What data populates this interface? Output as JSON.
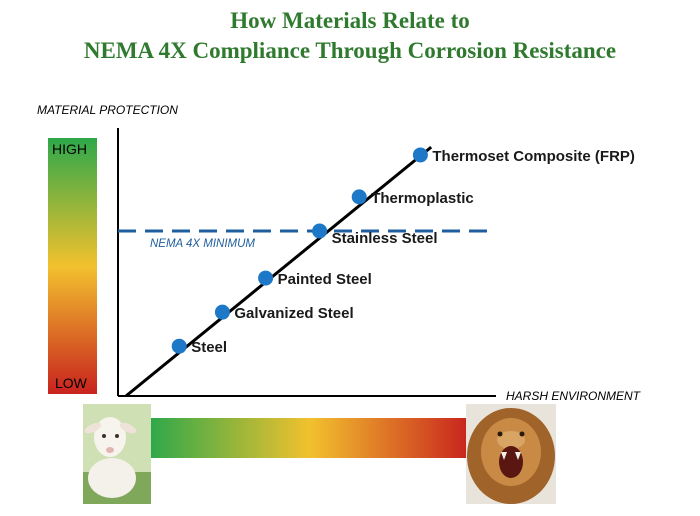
{
  "title_lines": [
    "How Materials Relate to",
    "NEMA 4X Compliance Through Corrosion Resistance"
  ],
  "colors": {
    "title": "#2f7a2f",
    "point": "#1e78c8",
    "reference_line": "#1f5f9f",
    "gradient_high": "#2ea84a",
    "gradient_mid": "#f2c12e",
    "gradient_low": "#c8231e"
  },
  "icons": {
    "mild_environment": "lamb-icon",
    "harsh_environment": "roaring-lion-icon"
  },
  "chart_data": {
    "type": "scatter",
    "ylabel": "MATERIAL PROTECTION",
    "xlabel": "HARSH ENVIRONMENT",
    "y_scale_labels": {
      "high": "HIGH",
      "low": "LOW"
    },
    "xlim": [
      0,
      10
    ],
    "ylim": [
      0,
      10
    ],
    "trend_line": {
      "from": [
        0,
        0
      ],
      "to": [
        8.7,
        9.5
      ]
    },
    "reference_line": {
      "label": "NEMA 4X MINIMUM",
      "y": 6.3
    },
    "points": [
      {
        "label": "Steel",
        "x": 1.7,
        "y": 1.9
      },
      {
        "label": "Galvanized Steel",
        "x": 2.9,
        "y": 3.2
      },
      {
        "label": "Painted Steel",
        "x": 4.1,
        "y": 4.5
      },
      {
        "label": "Stainless Steel",
        "x": 5.6,
        "y": 6.3
      },
      {
        "label": "Thermoplastic",
        "x": 6.7,
        "y": 7.6
      },
      {
        "label": "Thermoset Composite (FRP)",
        "x": 8.4,
        "y": 9.2
      }
    ]
  }
}
